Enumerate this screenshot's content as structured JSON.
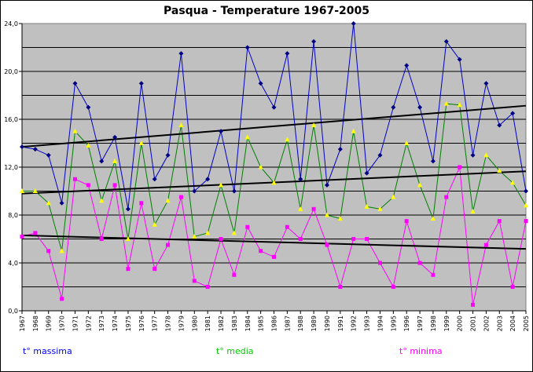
{
  "chart_data": {
    "type": "line",
    "title": "Pasqua - Temperature 1967-2005",
    "xlabel": "",
    "ylabel": "",
    "ylim": [
      0,
      24
    ],
    "yticks": [
      "0,0",
      "4,0",
      "8,0",
      "12,0",
      "16,0",
      "20,0",
      "24,0"
    ],
    "grid": true,
    "background": "#c0c0c0",
    "x": [
      "1967",
      "1968",
      "1969",
      "1970",
      "1971",
      "1972",
      "1973",
      "1974",
      "1975",
      "1976",
      "1977",
      "1978",
      "1979",
      "1980",
      "1981",
      "1982",
      "1983",
      "1984",
      "1985",
      "1986",
      "1987",
      "1988",
      "1989",
      "1990",
      "1991",
      "1992",
      "1993",
      "1994",
      "1995",
      "1996",
      "1997",
      "1998",
      "1999",
      "2000",
      "2001",
      "2002",
      "2003",
      "2004",
      "2005"
    ],
    "series": [
      {
        "name": "t° massima",
        "color": "#0000cc",
        "marker_color": "#000080",
        "values": [
          13.7,
          13.5,
          13.0,
          9.0,
          19.0,
          17.0,
          12.5,
          14.5,
          8.5,
          19.0,
          11.0,
          13.0,
          21.5,
          10.0,
          11.0,
          15.0,
          10.0,
          22.0,
          19.0,
          17.0,
          21.5,
          11.0,
          22.5,
          10.5,
          13.5,
          24.0,
          11.5,
          13.0,
          17.0,
          20.5,
          17.0,
          12.5,
          22.5,
          21.0,
          13.0,
          19.0,
          15.5,
          16.5,
          10.0
        ]
      },
      {
        "name": "t° media",
        "color": "#008000",
        "marker_color": "#ffff00",
        "values": [
          10.0,
          10.0,
          9.0,
          5.0,
          15.0,
          13.8,
          9.2,
          12.5,
          6.0,
          14.0,
          7.2,
          9.2,
          15.5,
          6.2,
          6.5,
          10.5,
          6.5,
          14.5,
          12.0,
          10.7,
          14.3,
          8.5,
          15.5,
          8.0,
          7.7,
          15.0,
          8.7,
          8.5,
          9.5,
          14.0,
          10.5,
          7.7,
          17.3,
          17.2,
          8.3,
          13.0,
          11.7,
          10.7,
          8.8
        ]
      },
      {
        "name": "t° minima",
        "color": "#ff00ff",
        "marker_color": "#ff00ff",
        "values": [
          6.2,
          6.5,
          5.0,
          1.0,
          11.0,
          10.5,
          6.0,
          10.5,
          3.5,
          9.0,
          3.5,
          5.5,
          9.5,
          2.5,
          2.0,
          6.0,
          3.0,
          7.0,
          5.0,
          4.5,
          7.0,
          6.0,
          8.5,
          5.5,
          2.0,
          6.0,
          6.0,
          4.0,
          2.0,
          7.5,
          4.0,
          3.0,
          9.5,
          12.0,
          0.5,
          5.5,
          7.5,
          2.0,
          7.5
        ]
      }
    ],
    "trend_color": "#000000",
    "legend_position": "bottom"
  }
}
